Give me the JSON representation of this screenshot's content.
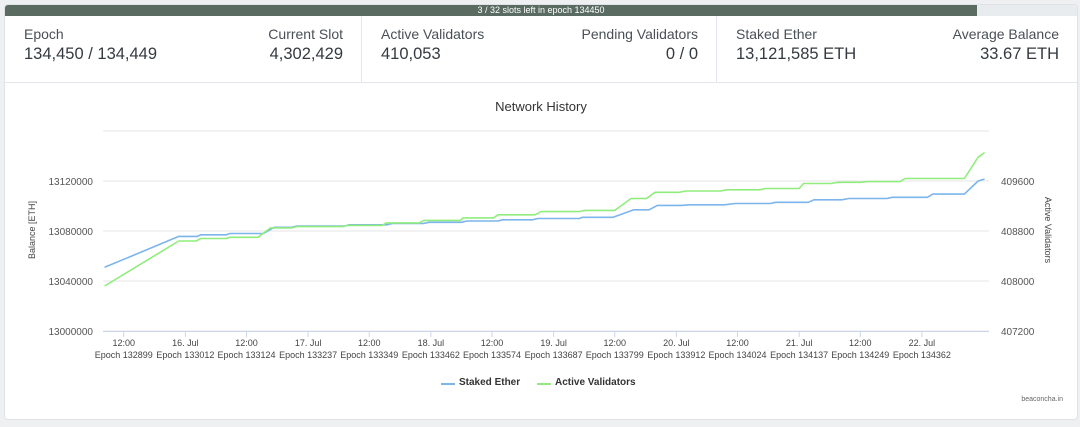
{
  "progress": {
    "text": "3 / 32 slots left in epoch 134450",
    "fraction": 0.9063
  },
  "stats": {
    "epoch": {
      "label": "Epoch",
      "value": "134,450 / 134,449"
    },
    "current_slot": {
      "label": "Current Slot",
      "value": "4,302,429"
    },
    "active_validators": {
      "label": "Active Validators",
      "value": "410,053"
    },
    "pending_validators": {
      "label": "Pending Validators",
      "value": "0 / 0"
    },
    "staked_ether": {
      "label": "Staked Ether",
      "value": "13,121,585 ETH"
    },
    "average_balance": {
      "label": "Average Balance",
      "value": "33.67 ETH"
    }
  },
  "credit": "beaconcha.in",
  "chart_data": {
    "type": "line",
    "title": "Network History",
    "ylabel": "Balance [ETH]",
    "y2label": "Active Validators",
    "ylim": [
      13000000,
      13160000
    ],
    "y2lim": [
      407200,
      410400
    ],
    "yticks": [
      "13000000",
      "13040000",
      "13080000",
      "13120000"
    ],
    "y2ticks": [
      "407200",
      "408000",
      "408800",
      "409600"
    ],
    "xlim": [
      132861,
      134485
    ],
    "xticks": [
      {
        "x": 132899,
        "top": "12:00",
        "bottom": "Epoch 132899"
      },
      {
        "x": 133012,
        "top": "16. Jul",
        "bottom": "Epoch 133012"
      },
      {
        "x": 133124,
        "top": "12:00",
        "bottom": "Epoch 133124"
      },
      {
        "x": 133237,
        "top": "17. Jul",
        "bottom": "Epoch 133237"
      },
      {
        "x": 133349,
        "top": "12:00",
        "bottom": "Epoch 133349"
      },
      {
        "x": 133462,
        "top": "18. Jul",
        "bottom": "Epoch 133462"
      },
      {
        "x": 133574,
        "top": "12:00",
        "bottom": "Epoch 133574"
      },
      {
        "x": 133687,
        "top": "19. Jul",
        "bottom": "Epoch 133687"
      },
      {
        "x": 133799,
        "top": "12:00",
        "bottom": "Epoch 133799"
      },
      {
        "x": 133912,
        "top": "20. Jul",
        "bottom": "Epoch 133912"
      },
      {
        "x": 134024,
        "top": "12:00",
        "bottom": "Epoch 134024"
      },
      {
        "x": 134137,
        "top": "21. Jul",
        "bottom": "Epoch 134137"
      },
      {
        "x": 134249,
        "top": "12:00",
        "bottom": "Epoch 134249"
      },
      {
        "x": 134362,
        "top": "22. Jul",
        "bottom": "Epoch 134362"
      }
    ],
    "grid": true,
    "legend_position": "bottom",
    "series": [
      {
        "name": "Staked Ether",
        "axis": "left",
        "color": "#7cb5ec",
        "points": [
          [
            132864,
            13051000
          ],
          [
            133000,
            13075700
          ],
          [
            133034,
            13075700
          ],
          [
            133040,
            13077000
          ],
          [
            133087,
            13077000
          ],
          [
            133094,
            13078000
          ],
          [
            133155,
            13078000
          ],
          [
            133175,
            13083000
          ],
          [
            133207,
            13083000
          ],
          [
            133216,
            13084000
          ],
          [
            133305,
            13084000
          ],
          [
            133312,
            13085000
          ],
          [
            133381,
            13085000
          ],
          [
            133391,
            13086000
          ],
          [
            133448,
            13086000
          ],
          [
            133459,
            13087000
          ],
          [
            133518,
            13087000
          ],
          [
            133528,
            13088000
          ],
          [
            133585,
            13088000
          ],
          [
            133593,
            13089000
          ],
          [
            133648,
            13089000
          ],
          [
            133658,
            13090000
          ],
          [
            133734,
            13090000
          ],
          [
            133740,
            13091000
          ],
          [
            133796,
            13091000
          ],
          [
            133834,
            13097000
          ],
          [
            133862,
            13097000
          ],
          [
            133877,
            13100500
          ],
          [
            133922,
            13100500
          ],
          [
            133935,
            13101000
          ],
          [
            134000,
            13101000
          ],
          [
            134020,
            13102000
          ],
          [
            134084,
            13102000
          ],
          [
            134094,
            13103000
          ],
          [
            134154,
            13103000
          ],
          [
            134164,
            13105000
          ],
          [
            134215,
            13105000
          ],
          [
            134228,
            13106000
          ],
          [
            134298,
            13106000
          ],
          [
            134308,
            13107000
          ],
          [
            134372,
            13107000
          ],
          [
            134382,
            13109500
          ],
          [
            134440,
            13109500
          ],
          [
            134465,
            13120000
          ],
          [
            134477,
            13121585
          ]
        ]
      },
      {
        "name": "Active Validators",
        "axis": "right",
        "color": "#90ed7d",
        "points": [
          [
            132864,
            407920
          ],
          [
            133000,
            408640
          ],
          [
            133032,
            408640
          ],
          [
            133040,
            408680
          ],
          [
            133087,
            408680
          ],
          [
            133094,
            408700
          ],
          [
            133145,
            408700
          ],
          [
            133168,
            408850
          ],
          [
            133207,
            408850
          ],
          [
            133216,
            408870
          ],
          [
            133301,
            408870
          ],
          [
            133308,
            408890
          ],
          [
            133373,
            408890
          ],
          [
            133380,
            408930
          ],
          [
            133441,
            408930
          ],
          [
            133449,
            408970
          ],
          [
            133516,
            408970
          ],
          [
            133521,
            409010
          ],
          [
            133577,
            409010
          ],
          [
            133585,
            409060
          ],
          [
            133653,
            409060
          ],
          [
            133664,
            409110
          ],
          [
            133734,
            409110
          ],
          [
            133744,
            409130
          ],
          [
            133799,
            409130
          ],
          [
            133829,
            409320
          ],
          [
            133857,
            409320
          ],
          [
            133873,
            409420
          ],
          [
            133917,
            409420
          ],
          [
            133929,
            409440
          ],
          [
            133993,
            409440
          ],
          [
            134005,
            409460
          ],
          [
            134065,
            409460
          ],
          [
            134075,
            409480
          ],
          [
            134137,
            409480
          ],
          [
            134145,
            409560
          ],
          [
            134195,
            409560
          ],
          [
            134208,
            409580
          ],
          [
            134250,
            409580
          ],
          [
            134262,
            409590
          ],
          [
            134322,
            409590
          ],
          [
            134331,
            409640
          ],
          [
            134385,
            409640
          ],
          [
            134440,
            409640
          ],
          [
            134465,
            409980
          ],
          [
            134477,
            410053
          ]
        ]
      }
    ]
  }
}
